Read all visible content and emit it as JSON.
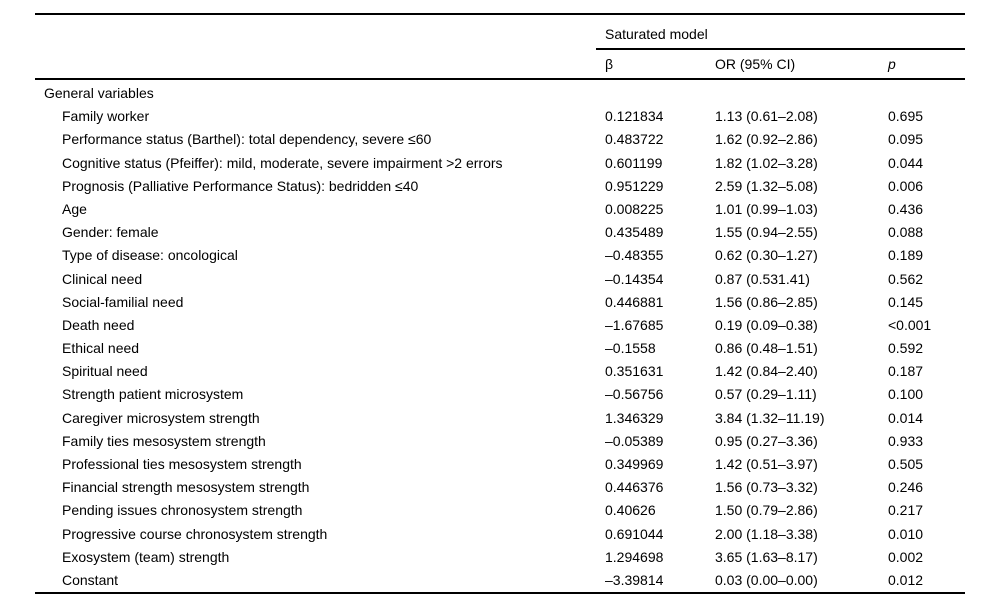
{
  "table": {
    "spanner": "Saturated model",
    "columns": {
      "beta": "β",
      "or": "OR (95% CI)",
      "p": "p"
    },
    "group_header": "General variables",
    "rows": [
      {
        "label": "Family worker",
        "beta": "0.121834",
        "or": "1.13 (0.61–2.08)",
        "p": "0.695"
      },
      {
        "label": "Performance status (Barthel): total dependency, severe ≤60",
        "beta": "0.483722",
        "or": "1.62 (0.92–2.86)",
        "p": "0.095"
      },
      {
        "label": "Cognitive status (Pfeiffer): mild, moderate, severe impairment >2 errors",
        "beta": "0.601199",
        "or": "1.82 (1.02–3.28)",
        "p": "0.044"
      },
      {
        "label": "Prognosis (Palliative Performance Status): bedridden ≤40",
        "beta": "0.951229",
        "or": "2.59 (1.32–5.08)",
        "p": "0.006"
      },
      {
        "label": "Age",
        "beta": "0.008225",
        "or": "1.01 (0.99–1.03)",
        "p": "0.436"
      },
      {
        "label": "Gender: female",
        "beta": "0.435489",
        "or": "1.55 (0.94–2.55)",
        "p": "0.088"
      },
      {
        "label": "Type of disease: oncological",
        "beta": "–0.48355",
        "or": "0.62 (0.30–1.27)",
        "p": "0.189"
      },
      {
        "label": "Clinical need",
        "beta": "–0.14354",
        "or": "0.87 (0.531.41)",
        "p": "0.562"
      },
      {
        "label": "Social-familial need",
        "beta": "0.446881",
        "or": "1.56 (0.86–2.85)",
        "p": "0.145"
      },
      {
        "label": "Death need",
        "beta": "–1.67685",
        "or": "0.19 (0.09–0.38)",
        "p": "<0.001"
      },
      {
        "label": "Ethical need",
        "beta": "–0.1558",
        "or": "0.86 (0.48–1.51)",
        "p": "0.592"
      },
      {
        "label": "Spiritual need",
        "beta": "0.351631",
        "or": "1.42 (0.84–2.40)",
        "p": "0.187"
      },
      {
        "label": "Strength patient microsystem",
        "beta": "–0.56756",
        "or": "0.57 (0.29–1.11)",
        "p": "0.100"
      },
      {
        "label": "Caregiver microsystem strength",
        "beta": "1.346329",
        "or": "3.84 (1.32–11.19)",
        "p": "0.014"
      },
      {
        "label": "Family ties mesosystem strength",
        "beta": "–0.05389",
        "or": "0.95 (0.27–3.36)",
        "p": "0.933"
      },
      {
        "label": "Professional ties mesosystem strength",
        "beta": "0.349969",
        "or": "1.42 (0.51–3.97)",
        "p": "0.505"
      },
      {
        "label": "Financial strength mesosystem strength",
        "beta": "0.446376",
        "or": "1.56 (0.73–3.32)",
        "p": "0.246"
      },
      {
        "label": "Pending issues chronosystem strength",
        "beta": "0.40626",
        "or": "1.50 (0.79–2.86)",
        "p": "0.217"
      },
      {
        "label": "Progressive course chronosystem strength",
        "beta": "0.691044",
        "or": "2.00 (1.18–3.38)",
        "p": "0.010"
      },
      {
        "label": "Exosystem (team) strength",
        "beta": "1.294698",
        "or": "3.65 (1.63–8.17)",
        "p": "0.002"
      },
      {
        "label": "Constant",
        "beta": "–3.39814",
        "or": "0.03 (0.00–0.00)",
        "p": "0.012"
      }
    ]
  }
}
